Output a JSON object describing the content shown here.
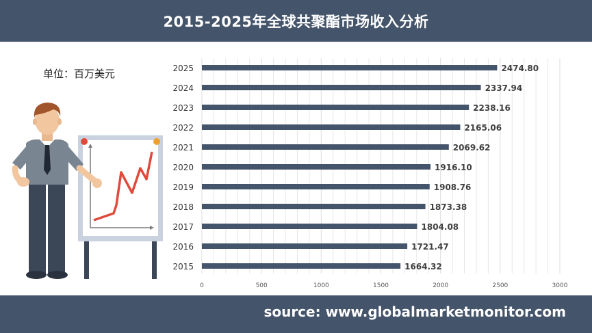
{
  "header": {
    "title": "2015-2025年全球共聚酯市场收入分析"
  },
  "unit_label": "单位：百万美元",
  "footer": {
    "source": "source: www.globalmarketmonitor.com"
  },
  "colors": {
    "band": "#44546a",
    "bar": "#44546a",
    "grid": "#e6e6e6",
    "text": "#333333",
    "label": "#404040"
  },
  "illustration": {
    "icons": [
      "presenter-icon",
      "chart-board-icon"
    ]
  },
  "chart_data": {
    "type": "bar",
    "orientation": "horizontal",
    "title": "2015-2025年全球共聚酯市场收入分析",
    "xlabel": "",
    "ylabel": "",
    "categories": [
      "2025",
      "2024",
      "2023",
      "2022",
      "2021",
      "2020",
      "2019",
      "2018",
      "2017",
      "2016",
      "2015"
    ],
    "values": [
      2474.8,
      2337.94,
      2238.16,
      2165.06,
      2069.62,
      1916.1,
      1908.76,
      1873.38,
      1804.08,
      1721.47,
      1664.32
    ],
    "value_labels": [
      "2474.80",
      "2337.94",
      "2238.16",
      "2165.06",
      "2069.62",
      "1916.10",
      "1908.76",
      "1873.38",
      "1804.08",
      "1721.47",
      "1664.32"
    ],
    "xlim": [
      0,
      3000
    ],
    "x_ticks": [
      "0",
      "500",
      "1000",
      "1500",
      "2000",
      "2500",
      "3000"
    ],
    "grid": true,
    "legend": "none"
  }
}
